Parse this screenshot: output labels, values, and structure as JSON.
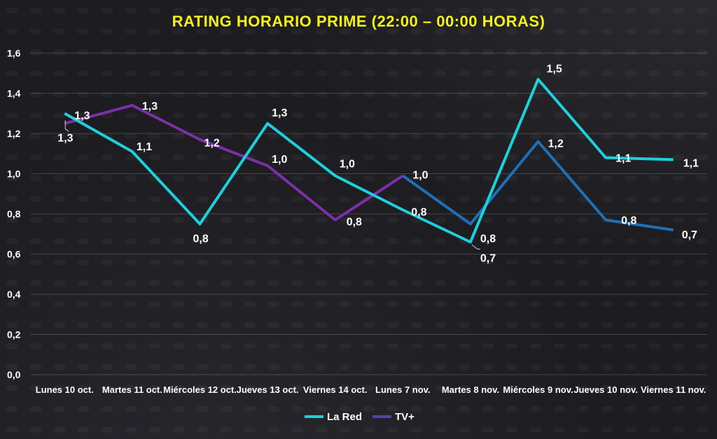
{
  "chart_data": {
    "type": "line",
    "title": "RATING HORARIO PRIME (22:00 – 00:00 HORAS)",
    "xlabel": "",
    "ylabel": "",
    "ylim": [
      0,
      1.6
    ],
    "y_ticks": [
      "0,0",
      "0,2",
      "0,4",
      "0,6",
      "0,8",
      "1,0",
      "1,2",
      "1,4",
      "1,6"
    ],
    "grid": "horizontal",
    "legend_position": "bottom",
    "categories": [
      "Lunes 10 oct.",
      "Martes 11 oct.",
      "Miércoles 12 oct.",
      "Jueves 13 oct.",
      "Viernes 14 oct.",
      "Lunes 7 nov.",
      "Martes 8 nov.",
      "Miércoles 9 nov.",
      "Jueves 10 nov.",
      "Viernes 11 nov."
    ],
    "series": [
      {
        "name": "La Red",
        "color": "#1ecfdc",
        "values": [
          1.3,
          1.11,
          0.75,
          1.25,
          0.99,
          0.82,
          0.66,
          1.47,
          1.08,
          1.07
        ],
        "labels": [
          "1,3",
          "1,1",
          "0,8",
          "1,3",
          "1,0",
          "0,8",
          "0,7",
          "1,5",
          "1,1",
          "1,1"
        ]
      },
      {
        "name": "TV+",
        "color": "#7b2fa8",
        "color_later": "#1f6fb5",
        "values": [
          1.25,
          1.34,
          1.17,
          1.04,
          0.77,
          0.99,
          0.75,
          1.16,
          0.77,
          0.72
        ],
        "labels": [
          "1,3",
          "1,3",
          "1,2",
          "1,0",
          "0,8",
          "1,0",
          "0,8",
          "1,2",
          "0,8",
          "0,7"
        ]
      }
    ]
  }
}
